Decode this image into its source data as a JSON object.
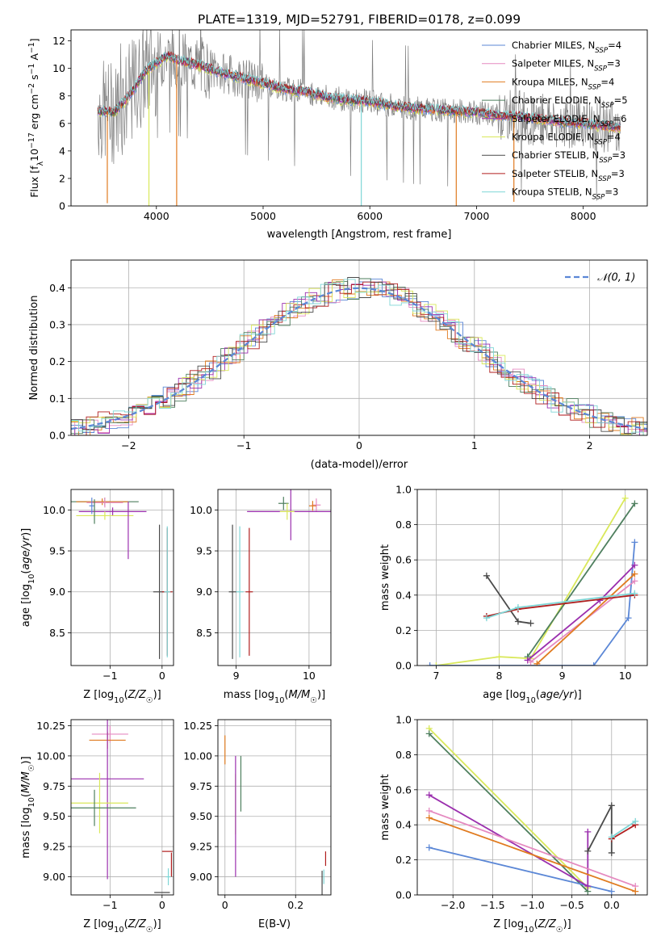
{
  "figure": {
    "title": "PLATE=1319, MJD=52791, FIBERID=0178, z=0.099"
  },
  "colors": {
    "chabrier_miles": "#5b87d6",
    "salpeter_miles": "#e58ac0",
    "kroupa_miles": "#e07b20",
    "chabrier_elodie": "#4e7f5e",
    "salpeter_elodie": "#9b2fae",
    "kroupa_elodie": "#d9e85a",
    "chabrier_stelib": "#4a4a4a",
    "salpeter_stelib": "#b01e1e",
    "kroupa_stelib": "#7fd6d6",
    "data": "#808080"
  },
  "chart_data": [
    {
      "id": "spectrum",
      "type": "line",
      "xlabel": "wavelength [Angstrom, rest frame]",
      "ylabel": "Flux [f_λ 10^-17 erg cm^-2 s^-1 A^-1]",
      "xlim": [
        3200,
        8600
      ],
      "ylim": [
        0,
        12.8
      ],
      "xticks": [
        4000,
        5000,
        6000,
        7000,
        8000
      ],
      "yticks": [
        0,
        2,
        4,
        6,
        8,
        10,
        12
      ],
      "legend_position": "top-right",
      "series": [
        {
          "name": "Chabrier MILES, N_SSP=4",
          "key": "chabrier_miles"
        },
        {
          "name": "Salpeter MILES, N_SSP=3",
          "key": "salpeter_miles"
        },
        {
          "name": "Kroupa MILES, N_SSP=4",
          "key": "kroupa_miles"
        },
        {
          "name": "Chabrier ELODIE, N_SSP=5",
          "key": "chabrier_elodie"
        },
        {
          "name": "Salpeter ELODIE, N_SSP=6",
          "key": "salpeter_elodie"
        },
        {
          "name": "Kroupa ELODIE, N_SSP=4",
          "key": "kroupa_elodie"
        },
        {
          "name": "Chabrier STELIB, N_SSP=3",
          "key": "chabrier_stelib"
        },
        {
          "name": "Salpeter STELIB, N_SSP=3",
          "key": "salpeter_stelib"
        },
        {
          "name": "Kroupa STELIB, N_SSP=3",
          "key": "kroupa_stelib"
        }
      ],
      "model_continuum": {
        "x": [
          3450,
          3600,
          3700,
          3800,
          3900,
          4000,
          4100,
          4200,
          4400,
          4600,
          4800,
          5000,
          5200,
          5400,
          5600,
          5800,
          6000,
          6200,
          6400,
          6600,
          6800,
          7000,
          7200,
          7400,
          7600,
          7800,
          8000,
          8200,
          8350
        ],
        "y": [
          6.9,
          6.8,
          7.6,
          8.6,
          9.8,
          10.4,
          10.9,
          10.6,
          10.2,
          9.7,
          9.3,
          8.9,
          8.5,
          8.3,
          7.9,
          7.7,
          7.6,
          7.3,
          7.1,
          7.0,
          6.9,
          6.8,
          6.6,
          6.5,
          6.3,
          6.1,
          6.0,
          5.8,
          5.7
        ]
      },
      "model_dips": [
        {
          "x": 3540,
          "y": 0.2,
          "key": "kroupa_miles"
        },
        {
          "x": 3930,
          "y": 0.0,
          "key": "kroupa_elodie"
        },
        {
          "x": 4190,
          "y": 0.0,
          "key": "kroupa_miles"
        },
        {
          "x": 5920,
          "y": 0.0,
          "key": "kroupa_stelib"
        },
        {
          "x": 6810,
          "y": 0.0,
          "key": "kroupa_miles"
        },
        {
          "x": 7350,
          "y": 0.3,
          "key": "kroupa_miles"
        }
      ]
    },
    {
      "id": "residuals",
      "type": "line",
      "xlabel": "(data-model)/error",
      "ylabel": "Normed distribution",
      "xlim": [
        -2.5,
        2.5
      ],
      "ylim": [
        0,
        0.475
      ],
      "xticks": [
        -2,
        -1,
        0,
        1,
        2
      ],
      "yticks": [
        0.0,
        0.1,
        0.2,
        0.3,
        0.4
      ],
      "grid": true,
      "legend_position": "top-right",
      "reference_curve": {
        "name": "𝒩(0, 1)",
        "mean": 0,
        "sigma": 1
      }
    },
    {
      "id": "age_vs_Z",
      "type": "scatter",
      "xlabel": "Z [log10(Z/Z☉)]",
      "ylabel": "age  [log10(age/yr)]",
      "xlim": [
        -1.75,
        0.22
      ],
      "ylim": [
        8.1,
        10.25
      ],
      "xticks": [
        -1,
        0
      ],
      "yticks": [
        8.5,
        9.0,
        9.5,
        10.0
      ],
      "grid": true,
      "errorbars": [
        {
          "key": "chabrier_elodie",
          "x": -1.1,
          "xerr": 0.65,
          "y": 10.1,
          "yerr": 0.05
        },
        {
          "key": "kroupa_miles",
          "x": -1.15,
          "xerr": 0.5,
          "y": 10.1,
          "yerr": 0.04
        },
        {
          "key": "salpeter_miles",
          "x": -1.1,
          "xerr": 0.35,
          "y": 10.09,
          "yerr": 0.06
        },
        {
          "key": "salpeter_elodie",
          "x": -0.95,
          "xerr": 0.65,
          "y": 9.98,
          "yerr": 0.05
        },
        {
          "key": "kroupa_elodie",
          "x": -1.1,
          "xerr": 0.55,
          "y": 9.93,
          "yerr": 0.05
        },
        {
          "key": "chabrier_miles",
          "x": -1.35,
          "xerr": 0.05,
          "y": 10.05,
          "yerr": 0.1
        },
        {
          "key": "salpeter_elodie",
          "x": -0.65,
          "xerr": 0.0,
          "y": 9.75,
          "yerr": 0.35
        },
        {
          "key": "chabrier_elodie",
          "x": -1.3,
          "xerr": 0.0,
          "y": 9.98,
          "yerr": 0.15
        },
        {
          "key": "chabrier_stelib",
          "x": -0.05,
          "xerr": 0.12,
          "y": 9.0,
          "yerr": 0.82
        },
        {
          "key": "salpeter_stelib",
          "x": 0.1,
          "xerr": 0.1,
          "y": 9.0,
          "yerr": 0.78
        },
        {
          "key": "kroupa_stelib",
          "x": 0.1,
          "xerr": 0.06,
          "y": 9.0,
          "yerr": 0.8
        }
      ]
    },
    {
      "id": "age_vs_mass",
      "type": "scatter",
      "xlabel": "mass [log10(M/M☉)]",
      "ylabel": "",
      "xlim": [
        8.75,
        10.3
      ],
      "ylim": [
        8.1,
        10.25
      ],
      "xticks": [
        9,
        10
      ],
      "yticks": [
        8.5,
        9.0,
        9.5,
        10.0
      ],
      "grid": true,
      "errorbars": [
        {
          "key": "chabrier_elodie",
          "x": 9.65,
          "xerr": 0.07,
          "y": 10.08,
          "yerr": 0.08
        },
        {
          "key": "salpeter_miles",
          "x": 10.1,
          "xerr": 0.06,
          "y": 10.06,
          "yerr": 0.08
        },
        {
          "key": "kroupa_miles",
          "x": 10.05,
          "xerr": 0.05,
          "y": 10.05,
          "yerr": 0.06
        },
        {
          "key": "salpeter_elodie",
          "x": 9.75,
          "xerr": 0.6,
          "y": 9.98,
          "yerr": 0.35
        },
        {
          "key": "kroupa_elodie",
          "x": 9.7,
          "xerr": 0.1,
          "y": 9.98,
          "yerr": 0.1
        },
        {
          "key": "chabrier_stelib",
          "x": 8.95,
          "xerr": 0.05,
          "y": 9.0,
          "yerr": 0.82
        },
        {
          "key": "salpeter_stelib",
          "x": 9.18,
          "xerr": 0.05,
          "y": 9.0,
          "yerr": 0.78
        },
        {
          "key": "kroupa_stelib",
          "x": 9.05,
          "xerr": 0.05,
          "y": 9.0,
          "yerr": 0.8
        }
      ]
    },
    {
      "id": "weight_vs_age",
      "type": "line",
      "xlabel": "age  [log10(age/yr)]",
      "ylabel": "mass weight",
      "xlim": [
        6.7,
        10.35
      ],
      "ylim": [
        0,
        1
      ],
      "xticks": [
        7,
        8,
        9,
        10
      ],
      "yticks": [
        0.0,
        0.2,
        0.4,
        0.6,
        0.8,
        1.0
      ],
      "grid": true,
      "series": [
        {
          "key": "kroupa_elodie",
          "x": [
            7.0,
            8.0,
            8.5,
            10.0
          ],
          "y": [
            0.0,
            0.05,
            0.04,
            0.95
          ]
        },
        {
          "key": "chabrier_elodie",
          "x": [
            8.45,
            10.15
          ],
          "y": [
            0.05,
            0.92
          ]
        },
        {
          "key": "chabrier_miles",
          "x": [
            6.9,
            9.5,
            10.05,
            10.15
          ],
          "y": [
            0.0,
            0.0,
            0.27,
            0.7
          ]
        },
        {
          "key": "salpeter_elodie",
          "x": [
            8.45,
            9.6,
            10.15
          ],
          "y": [
            0.03,
            0.37,
            0.57
          ]
        },
        {
          "key": "salpeter_miles",
          "x": [
            8.5,
            10.15
          ],
          "y": [
            0.02,
            0.48
          ]
        },
        {
          "key": "kroupa_miles",
          "x": [
            8.6,
            10.15
          ],
          "y": [
            0.01,
            0.52
          ]
        },
        {
          "key": "chabrier_stelib",
          "x": [
            7.8,
            8.3,
            8.5
          ],
          "y": [
            0.51,
            0.25,
            0.24
          ]
        },
        {
          "key": "salpeter_stelib",
          "x": [
            7.8,
            8.3,
            10.15
          ],
          "y": [
            0.28,
            0.32,
            0.4
          ]
        },
        {
          "key": "kroupa_stelib",
          "x": [
            7.8,
            8.3,
            10.15
          ],
          "y": [
            0.27,
            0.33,
            0.41
          ]
        }
      ]
    },
    {
      "id": "mass_vs_Z",
      "type": "scatter",
      "xlabel": "Z [log10(Z/Z☉)]",
      "ylabel": "mass [log10(M/M☉)]",
      "xlim": [
        -1.75,
        0.22
      ],
      "ylim": [
        8.85,
        10.3
      ],
      "xticks": [
        -1,
        0
      ],
      "yticks": [
        9.0,
        9.25,
        9.5,
        9.75,
        10.0,
        10.25
      ],
      "grid": true,
      "errorbars": [
        {
          "key": "salpeter_miles",
          "x": -1.0,
          "xerr": 0.35,
          "y": 10.18,
          "yerr": 0.07
        },
        {
          "key": "kroupa_miles",
          "x": -1.05,
          "xerr": 0.35,
          "y": 10.13,
          "yerr": 0.07
        },
        {
          "key": "salpeter_elodie",
          "x": -1.05,
          "xerr": 0.7,
          "y": 9.81,
          "yerr": 0.83
        },
        {
          "key": "kroupa_elodie",
          "x": -1.2,
          "xerr": 0.55,
          "y": 9.61,
          "yerr": 0.25
        },
        {
          "key": "chabrier_elodie",
          "x": -1.3,
          "xerr": 0.8,
          "y": 9.57,
          "yerr": 0.15
        },
        {
          "key": "chabrier_stelib",
          "x": 0.0,
          "xerr": 0.15,
          "y": 8.87,
          "yerr": 0.0
        },
        {
          "key": "salpeter_stelib",
          "x": 0.1,
          "xerr": 0.1,
          "y": 9.21,
          "yerr": 0.0
        },
        {
          "key": "salpeter_stelib",
          "x": 0.18,
          "xerr": 0.0,
          "y": 9.1,
          "yerr": 0.1
        },
        {
          "key": "kroupa_stelib",
          "x": 0.12,
          "xerr": 0.05,
          "y": 9.0,
          "yerr": 0.07
        }
      ]
    },
    {
      "id": "mass_vs_ebv",
      "type": "scatter",
      "xlabel": "E(B-V)",
      "ylabel": "",
      "xlim": [
        -0.02,
        0.3
      ],
      "ylim": [
        8.85,
        10.3
      ],
      "xticks": [
        0.0,
        0.2
      ],
      "yticks": [
        9.0,
        9.25,
        9.5,
        9.75,
        10.0,
        10.25
      ],
      "grid": true,
      "errorbars": [
        {
          "key": "kroupa_miles",
          "x": 0.0,
          "xerr": 0.0,
          "y": 10.05,
          "yerr": 0.12
        },
        {
          "key": "kroupa_elodie",
          "x": 0.03,
          "xerr": 0.0,
          "y": 9.6,
          "yerr": 0.25
        },
        {
          "key": "salpeter_elodie",
          "x": 0.03,
          "xerr": 0.0,
          "y": 9.5,
          "yerr": 0.5
        },
        {
          "key": "chabrier_elodie",
          "x": 0.045,
          "xerr": 0.0,
          "y": 9.77,
          "yerr": 0.23
        },
        {
          "key": "chabrier_stelib",
          "x": 0.275,
          "xerr": 0.0,
          "y": 8.95,
          "yerr": 0.1
        },
        {
          "key": "salpeter_stelib",
          "x": 0.285,
          "xerr": 0.0,
          "y": 9.15,
          "yerr": 0.06
        },
        {
          "key": "kroupa_stelib",
          "x": 0.28,
          "xerr": 0.0,
          "y": 9.0,
          "yerr": 0.06
        }
      ]
    },
    {
      "id": "weight_vs_Z",
      "type": "line",
      "xlabel": "Z [log10(Z/Z☉)]",
      "ylabel": "mass weight",
      "xlim": [
        -2.45,
        0.45
      ],
      "ylim": [
        0,
        1
      ],
      "xticks": [
        -2.0,
        -1.5,
        -1.0,
        -0.5,
        0.0
      ],
      "yticks": [
        0.0,
        0.2,
        0.4,
        0.6,
        0.8,
        1.0
      ],
      "grid": true,
      "series": [
        {
          "key": "kroupa_elodie",
          "x": [
            -2.3,
            -0.3
          ],
          "y": [
            0.95,
            0.04
          ]
        },
        {
          "key": "chabrier_elodie",
          "x": [
            -2.3,
            -0.3
          ],
          "y": [
            0.92,
            0.02
          ]
        },
        {
          "key": "chabrier_miles",
          "x": [
            -2.3,
            0.0
          ],
          "y": [
            0.27,
            0.02
          ]
        },
        {
          "key": "salpeter_elodie",
          "x": [
            -2.3,
            -0.3,
            -0.3
          ],
          "y": [
            0.57,
            0.05,
            0.36
          ]
        },
        {
          "key": "salpeter_miles",
          "x": [
            -2.3,
            0.3
          ],
          "y": [
            0.48,
            0.05
          ]
        },
        {
          "key": "kroupa_miles",
          "x": [
            -2.3,
            0.3
          ],
          "y": [
            0.44,
            0.02
          ]
        },
        {
          "key": "chabrier_stelib",
          "x": [
            -0.3,
            0.0,
            0.0
          ],
          "y": [
            0.25,
            0.51,
            0.24
          ]
        },
        {
          "key": "salpeter_stelib",
          "x": [
            0.0,
            0.3
          ],
          "y": [
            0.32,
            0.4
          ]
        },
        {
          "key": "kroupa_stelib",
          "x": [
            0.0,
            0.3
          ],
          "y": [
            0.33,
            0.42
          ]
        }
      ]
    }
  ]
}
